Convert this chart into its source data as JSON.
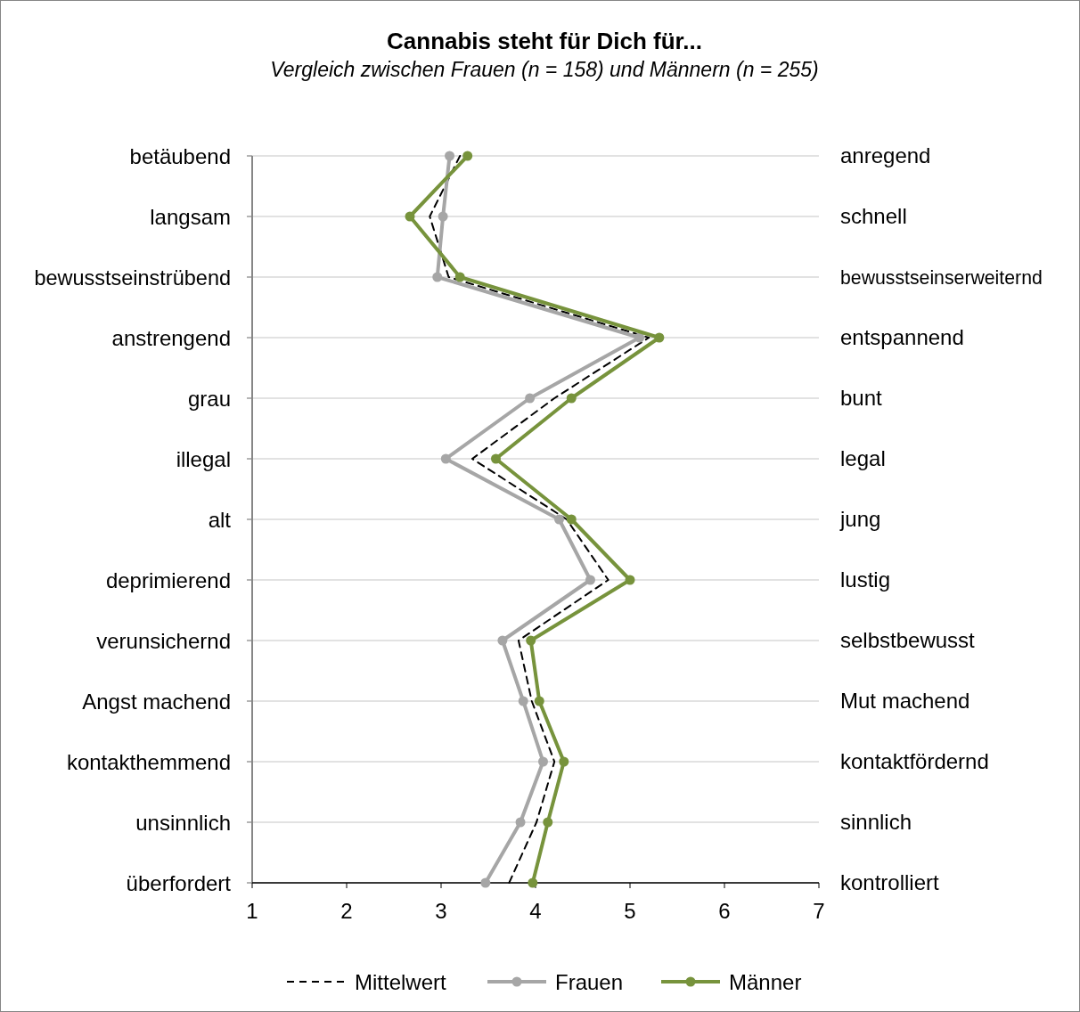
{
  "chart_data": {
    "type": "line",
    "orientation": "horizontal",
    "title": "Cannabis steht für Dich für...",
    "subtitle": "Vergleich zwischen Frauen (n = 158) und Männern (n = 255)",
    "categories": [
      "betäubend",
      "langsam",
      "bewusstseinstrübend",
      "anstrengend",
      "grau",
      "illegal",
      "alt",
      "deprimierend",
      "verunsichernd",
      "Angst machend",
      "kontakthemmend",
      "unsinnlich",
      "überfordert"
    ],
    "y2_categories": [
      "anregend",
      "schnell",
      "bewusstseinserweiternd",
      "entspannend",
      "bunt",
      "legal",
      "jung",
      "lustig",
      "selbstbewusst",
      "Mut machend",
      "kontaktfördernd",
      "sinnlich",
      "kontrolliert"
    ],
    "xlim": [
      1,
      7
    ],
    "xticks": [
      1,
      2,
      3,
      4,
      5,
      6,
      7
    ],
    "grid": "y",
    "legend": "bottom",
    "series": [
      {
        "name": "Mittelwert",
        "color": "#000000",
        "line_style": "dashed",
        "marker": "none",
        "values": [
          3.2,
          2.88,
          3.08,
          5.2,
          4.2,
          3.33,
          4.33,
          4.77,
          3.82,
          3.96,
          4.2,
          4.01,
          3.72
        ]
      },
      {
        "name": "Frauen",
        "color": "#a6a6a6",
        "line_style": "solid",
        "marker": "circle",
        "values": [
          3.09,
          3.02,
          2.96,
          5.1,
          3.94,
          3.05,
          4.25,
          4.58,
          3.65,
          3.87,
          4.08,
          3.84,
          3.47
        ]
      },
      {
        "name": "Männer",
        "color": "#77933c",
        "line_style": "solid",
        "marker": "circle",
        "values": [
          3.28,
          2.67,
          3.2,
          5.31,
          4.38,
          3.58,
          4.38,
          5.0,
          3.95,
          4.04,
          4.3,
          4.13,
          3.97
        ]
      }
    ]
  }
}
